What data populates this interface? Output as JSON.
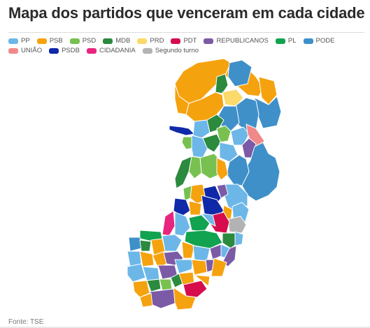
{
  "title": "Mapa dos partidos que venceram em cada cidade",
  "source": "Fonte: TSE",
  "legend": [
    {
      "label": "PP",
      "color": "#6cb7e8"
    },
    {
      "label": "PSB",
      "color": "#f5a20f"
    },
    {
      "label": "PSD",
      "color": "#78c151"
    },
    {
      "label": "MDB",
      "color": "#2b8a3e"
    },
    {
      "label": "PRD",
      "color": "#fbd96b"
    },
    {
      "label": "PDT",
      "color": "#d60c4c"
    },
    {
      "label": "REPUBLICANOS",
      "color": "#7b5aa6"
    },
    {
      "label": "PL",
      "color": "#11a34f"
    },
    {
      "label": "PODE",
      "color": "#3f90c9"
    },
    {
      "label": "UNIÃO",
      "color": "#f08a8a"
    },
    {
      "label": "PSDB",
      "color": "#0f29a8"
    },
    {
      "label": "CIDADANIA",
      "color": "#e8257e"
    },
    {
      "label": "Segundo turno",
      "color": "#b3b3b3"
    }
  ]
}
